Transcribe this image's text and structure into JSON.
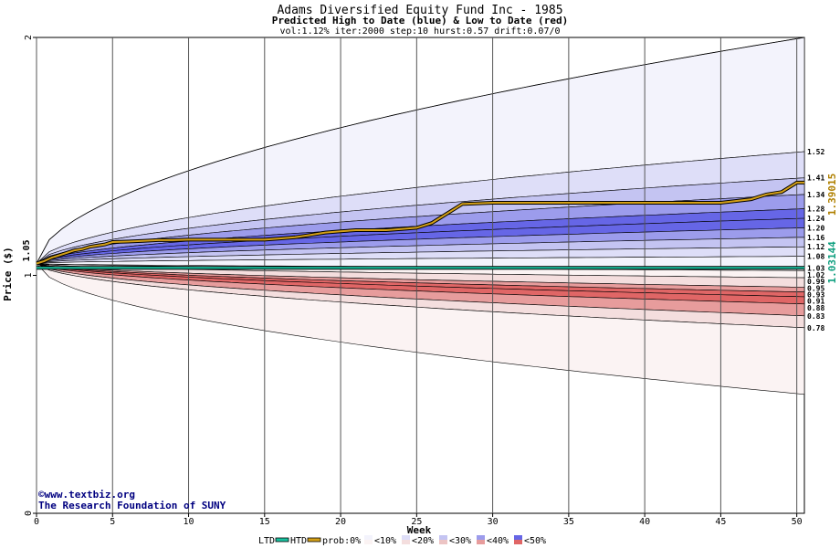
{
  "header": {
    "title": "Adams Diversified Equity Fund Inc - 1985",
    "subtitle": "Predicted High to Date (blue) &  Low to Date (red)",
    "params": "vol:1.12% iter:2000 step:10 hurst:0.57 drift:0.07/0"
  },
  "credits": {
    "site": "www.textbiz.org",
    "org": "The Research Foundation of SUNY"
  },
  "colors": {
    "background": "#ffffff",
    "grid": "#555555",
    "high_line": "#d4a017",
    "low_line": "#19c2a0",
    "high_fill_dark": "#6b6bf0",
    "low_fill_dark": "#f07878"
  },
  "legend": {
    "ltd": "LTD",
    "htd": "HTD",
    "prob_prefix": "prob:0%",
    "bands": [
      "<10%",
      "<20%",
      "<30%",
      "<40%",
      "<50%"
    ],
    "band_colors": [
      "#fbf3f3",
      "#f4dede",
      "#ecc4c4",
      "#e79c9c",
      "#e06666"
    ],
    "band_colors_blue": [
      "#f3f3fc",
      "#dedef8",
      "#c4c4f2",
      "#9c9cec",
      "#6666e6"
    ]
  },
  "chart_data": {
    "type": "area",
    "title": "Adams Diversified Equity Fund Inc - 1985",
    "xlabel": "Week",
    "ylabel": "Price ($)",
    "xlim": [
      0,
      50.5
    ],
    "ylim": [
      0,
      2
    ],
    "grid": true,
    "x_ticks": [
      0,
      5,
      10,
      15,
      20,
      25,
      30,
      35,
      40,
      45,
      50
    ],
    "y_ticks": [
      0,
      1,
      2
    ],
    "start_price_label": "1.05",
    "right_labels": {
      "htd": "1.39015",
      "ltd": "1.03144"
    },
    "high_levels": [
      1.52,
      1.41,
      1.34,
      1.28,
      1.24,
      1.2,
      1.16,
      1.12,
      1.08,
      1.03
    ],
    "low_levels": [
      1.02,
      0.99,
      0.95,
      0.93,
      0.91,
      0.88,
      0.83,
      0.78
    ],
    "level_labels": [
      "1.52",
      "1.41",
      "1.34",
      "1.28",
      "1.24",
      "1.20",
      "1.16",
      "1.12",
      "1.08",
      "1.03",
      "1.02",
      "0.99",
      "0.95",
      "0.93",
      "0.91",
      "0.88",
      "0.83",
      "0.78"
    ],
    "outer_high_upper": 2.0,
    "outer_low_lower": 0.5,
    "htd_path": {
      "x": [
        0,
        0.5,
        1,
        1.5,
        2,
        2.5,
        3,
        3.5,
        4,
        4.5,
        5,
        6,
        7,
        8,
        9,
        10,
        11,
        12,
        13,
        14,
        15,
        16,
        17,
        18,
        19,
        20,
        21,
        22,
        23,
        24,
        25,
        26,
        26.5,
        27,
        27.5,
        28,
        30,
        35,
        40,
        45,
        47,
        47.5,
        48,
        49,
        50,
        50.5
      ],
      "y": [
        1.05,
        1.06,
        1.075,
        1.085,
        1.095,
        1.105,
        1.11,
        1.12,
        1.125,
        1.13,
        1.14,
        1.142,
        1.145,
        1.148,
        1.148,
        1.15,
        1.15,
        1.15,
        1.15,
        1.15,
        1.15,
        1.155,
        1.16,
        1.17,
        1.18,
        1.185,
        1.19,
        1.19,
        1.19,
        1.195,
        1.2,
        1.22,
        1.24,
        1.26,
        1.28,
        1.3,
        1.305,
        1.305,
        1.305,
        1.305,
        1.32,
        1.33,
        1.34,
        1.35,
        1.39,
        1.39
      ]
    },
    "ltd_value": 1.03144
  }
}
